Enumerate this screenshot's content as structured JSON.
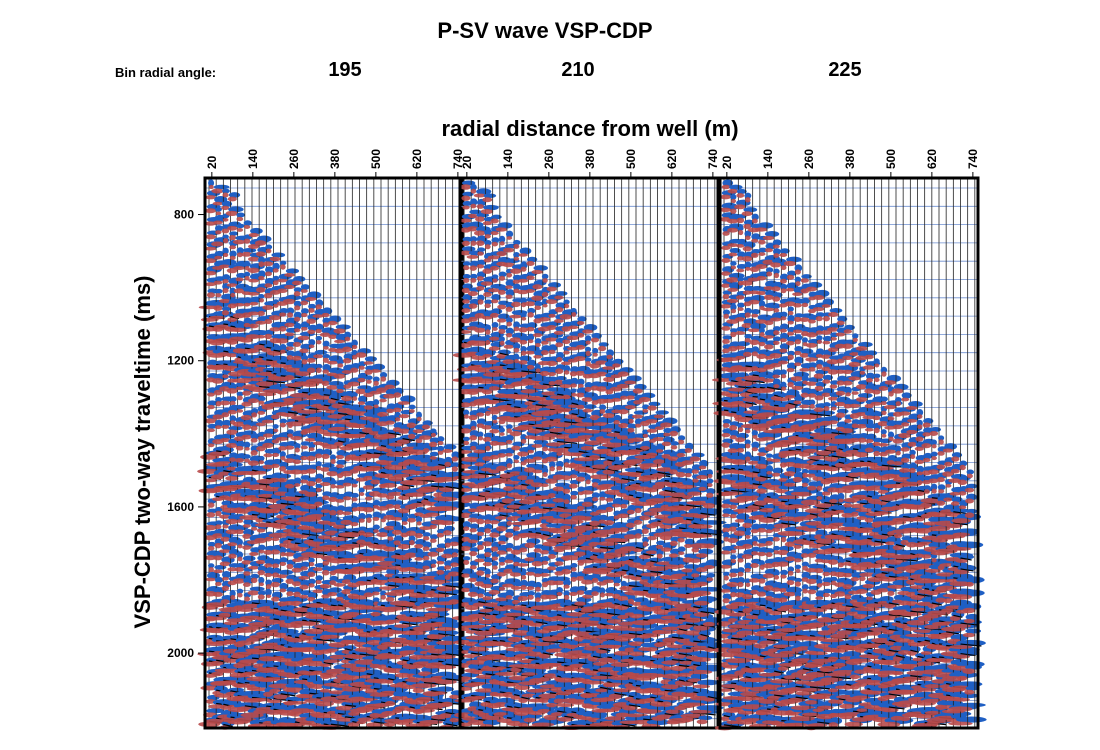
{
  "chart_data": {
    "type": "seismic",
    "title": "P-SV wave VSP-CDP",
    "panel_label": "Bin radial angle:",
    "panels": [
      195,
      210,
      225
    ],
    "xlabel": "radial distance from well (m)",
    "ylabel": "VSP-CDP two-way traveltime (ms)",
    "xlim": [
      0,
      755
    ],
    "xticks": [
      20,
      140,
      260,
      380,
      500,
      620,
      740
    ],
    "ylim": [
      700,
      2205
    ],
    "yticks": [
      800,
      1200,
      1600,
      2000
    ]
  }
}
